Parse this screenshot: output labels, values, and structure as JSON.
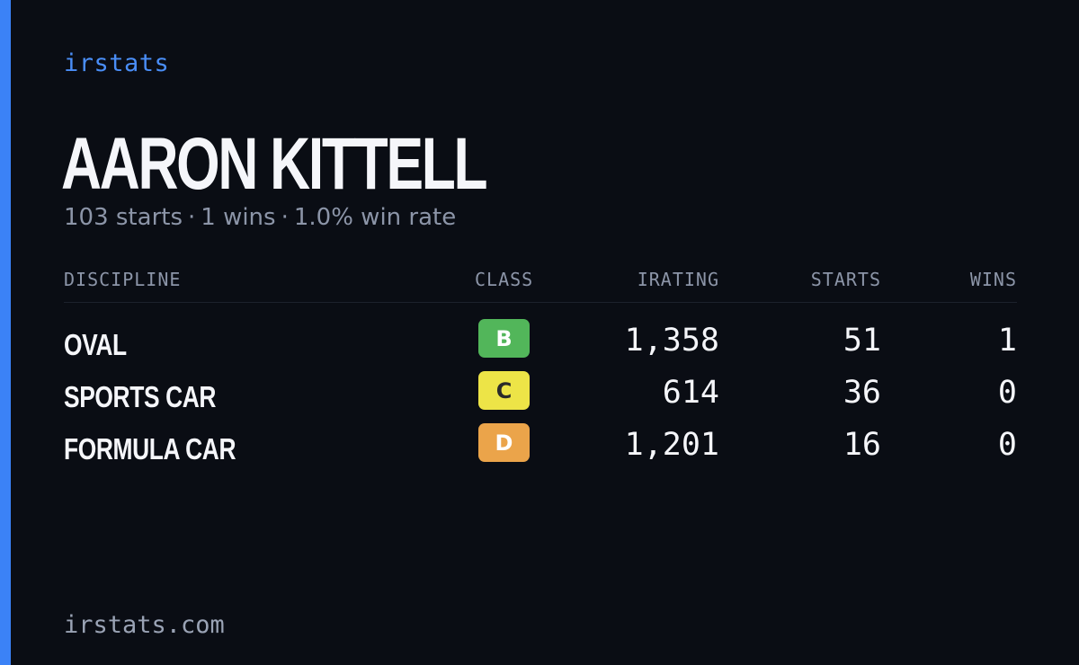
{
  "brand": "irstats",
  "driver": {
    "name": "AARON KITTELL",
    "starts_text": "103 starts",
    "wins_text": "1 wins",
    "win_rate_text": "1.0% win rate",
    "separator": "·"
  },
  "table": {
    "headers": {
      "discipline": "DISCIPLINE",
      "class": "CLASS",
      "irating": "IRATING",
      "starts": "STARTS",
      "wins": "WINS"
    },
    "rows": [
      {
        "discipline": "OVAL",
        "class": "B",
        "class_color": "#52b65a",
        "class_text_color": "#ffffff",
        "irating": "1,358",
        "starts": "51",
        "wins": "1"
      },
      {
        "discipline": "SPORTS CAR",
        "class": "C",
        "class_color": "#ede447",
        "class_text_color": "#2a2a2a",
        "irating": "614",
        "starts": "36",
        "wins": "0"
      },
      {
        "discipline": "FORMULA CAR",
        "class": "D",
        "class_color": "#eba44a",
        "class_text_color": "#ffffff",
        "irating": "1,201",
        "starts": "16",
        "wins": "0"
      }
    ]
  },
  "footer": "irstats.com",
  "colors": {
    "accent": "#3b82f6",
    "background": "#0a0d14"
  }
}
